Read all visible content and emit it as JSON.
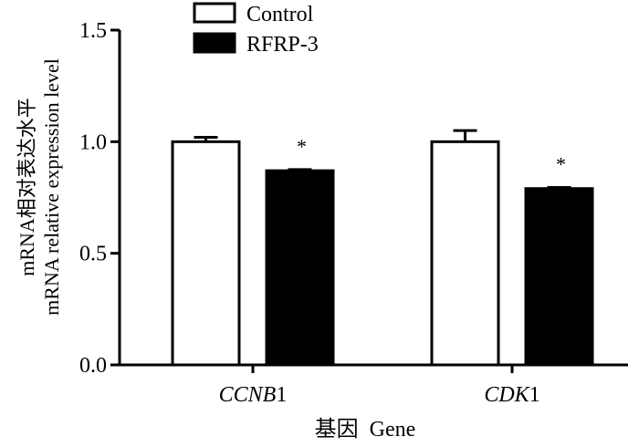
{
  "chart_data": {
    "type": "bar",
    "categories": [
      {
        "italic": "CCNB",
        "suffix": "1"
      },
      {
        "italic": "CDK",
        "suffix": "1"
      }
    ],
    "series": [
      {
        "name": "Control",
        "fill": "#ffffff",
        "values": [
          1.0,
          1.0
        ],
        "errors": [
          0.02,
          0.05
        ]
      },
      {
        "name": "RFRP-3",
        "fill": "#000000",
        "values": [
          0.87,
          0.79
        ],
        "errors": [
          0.005,
          0.005
        ]
      }
    ],
    "significance": [
      {
        "category": 0,
        "series": 1,
        "label": "*"
      },
      {
        "category": 1,
        "series": 1,
        "label": "*"
      }
    ],
    "ylim": [
      0,
      1.5
    ],
    "yticks": [
      "0.0",
      "0.5",
      "1.0",
      "1.5"
    ],
    "ylabel_line1": "mRNA相对表达水平",
    "ylabel_line2": "mRNA relative expression level",
    "xlabel": "基因  Gene",
    "legend_position": "top"
  }
}
